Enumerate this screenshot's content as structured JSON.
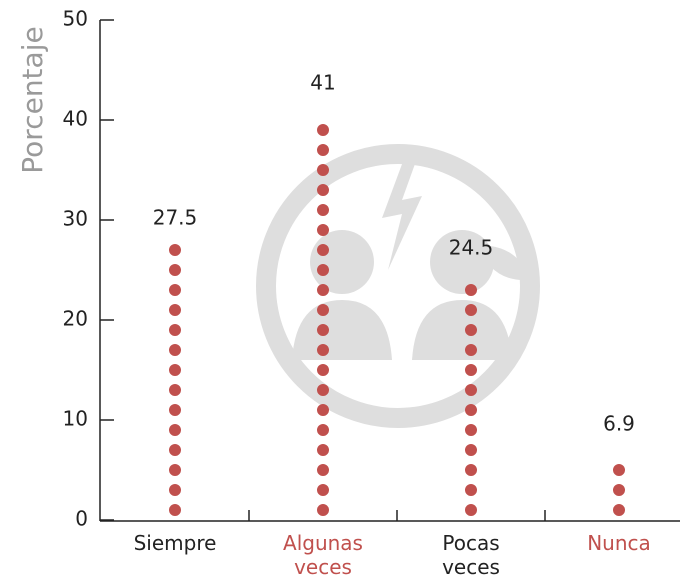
{
  "chart_data": {
    "type": "dot-column",
    "y_label": "Porcentaje",
    "categories": [
      "Siempre",
      "Algunas veces",
      "Pocas veces",
      "Nunca"
    ],
    "category_label_colors": [
      "#222222",
      "#c0504d",
      "#222222",
      "#c0504d"
    ],
    "values": [
      27.5,
      41,
      24.5,
      6.9
    ],
    "color": "#c0504d",
    "ylim": [
      0,
      50
    ],
    "yticks": [
      0,
      10,
      20,
      30,
      40,
      50
    ]
  }
}
